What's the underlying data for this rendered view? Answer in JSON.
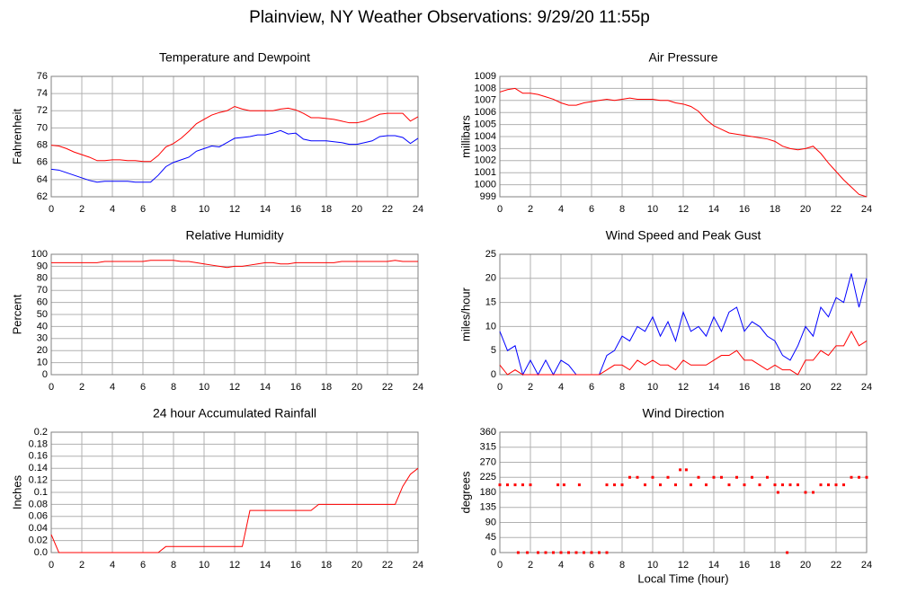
{
  "title": "Plainview, NY Weather Observations: 9/29/20 11:55p",
  "chart_data": [
    {
      "type": "line",
      "title": "Temperature and Dewpoint",
      "ylabel": "Fahrenheit",
      "x": [
        0,
        0.5,
        1,
        1.5,
        2,
        2.5,
        3,
        3.5,
        4,
        4.5,
        5,
        5.5,
        6,
        6.5,
        7,
        7.5,
        8,
        8.5,
        9,
        9.5,
        10,
        10.5,
        11,
        11.5,
        12,
        12.5,
        13,
        13.5,
        14,
        14.5,
        15,
        15.5,
        16,
        16.5,
        17,
        17.5,
        18,
        18.5,
        19,
        19.5,
        20,
        20.5,
        21,
        21.5,
        22,
        22.5,
        23,
        23.5,
        24
      ],
      "series": [
        {
          "color": "#ff0000",
          "values": [
            68,
            67.9,
            67.6,
            67.2,
            66.9,
            66.6,
            66.2,
            66.2,
            66.3,
            66.3,
            66.2,
            66.2,
            66.1,
            66.1,
            66.8,
            67.8,
            68.2,
            68.8,
            69.6,
            70.5,
            71,
            71.5,
            71.8,
            72,
            72.5,
            72.2,
            72,
            72,
            72,
            72,
            72.2,
            72.3,
            72.1,
            71.7,
            71.2,
            71.2,
            71.1,
            71,
            70.8,
            70.6,
            70.6,
            70.8,
            71.2,
            71.6,
            71.7,
            71.7,
            71.7,
            70.8,
            71.3
          ]
        },
        {
          "color": "#0000ff",
          "values": [
            65.2,
            65.1,
            64.8,
            64.5,
            64.2,
            63.9,
            63.7,
            63.8,
            63.8,
            63.8,
            63.8,
            63.7,
            63.7,
            63.7,
            64.5,
            65.5,
            66,
            66.3,
            66.6,
            67.3,
            67.6,
            67.9,
            67.8,
            68.3,
            68.8,
            68.9,
            69,
            69.2,
            69.2,
            69.4,
            69.7,
            69.3,
            69.4,
            68.7,
            68.5,
            68.5,
            68.5,
            68.4,
            68.3,
            68.1,
            68.1,
            68.3,
            68.5,
            69,
            69.1,
            69.1,
            68.9,
            68.2,
            68.8
          ]
        }
      ],
      "xlim": [
        0,
        24
      ],
      "xticks": [
        0,
        2,
        4,
        6,
        8,
        10,
        12,
        14,
        16,
        18,
        20,
        22,
        24
      ],
      "ylim": [
        62,
        76
      ],
      "yticks": [
        62,
        64,
        66,
        68,
        70,
        72,
        74,
        76
      ],
      "grid": true
    },
    {
      "type": "line",
      "title": "Air Pressure",
      "ylabel": "millibars",
      "x": [
        0,
        0.5,
        1,
        1.5,
        2,
        2.5,
        3,
        3.5,
        4,
        4.5,
        5,
        5.5,
        6,
        6.5,
        7,
        7.5,
        8,
        8.5,
        9,
        9.5,
        10,
        10.5,
        11,
        11.5,
        12,
        12.5,
        13,
        13.5,
        14,
        14.5,
        15,
        15.5,
        16,
        16.5,
        17,
        17.5,
        18,
        18.5,
        19,
        19.5,
        20,
        20.5,
        21,
        21.5,
        22,
        22.5,
        23,
        23.5,
        24
      ],
      "series": [
        {
          "color": "#ff0000",
          "values": [
            1007.7,
            1007.9,
            1008,
            1007.6,
            1007.6,
            1007.5,
            1007.3,
            1007.1,
            1006.8,
            1006.6,
            1006.6,
            1006.8,
            1006.9,
            1007,
            1007.1,
            1007,
            1007.1,
            1007.2,
            1007.1,
            1007.1,
            1007.1,
            1007,
            1007,
            1006.8,
            1006.7,
            1006.5,
            1006.1,
            1005.4,
            1004.9,
            1004.6,
            1004.3,
            1004.2,
            1004.1,
            1004,
            1003.9,
            1003.8,
            1003.6,
            1003.2,
            1003,
            1002.9,
            1003,
            1003.2,
            1002.6,
            1001.8,
            1001.1,
            1000.4,
            999.8,
            999.2,
            999
          ]
        }
      ],
      "xlim": [
        0,
        24
      ],
      "xticks": [
        0,
        2,
        4,
        6,
        8,
        10,
        12,
        14,
        16,
        18,
        20,
        22,
        24
      ],
      "ylim": [
        999,
        1009
      ],
      "yticks": [
        999,
        1000,
        1001,
        1002,
        1003,
        1004,
        1005,
        1006,
        1007,
        1008,
        1009
      ],
      "grid": true
    },
    {
      "type": "line",
      "title": "Relative Humidity",
      "ylabel": "Percent",
      "x": [
        0,
        0.5,
        1,
        1.5,
        2,
        2.5,
        3,
        3.5,
        4,
        4.5,
        5,
        5.5,
        6,
        6.5,
        7,
        7.5,
        8,
        8.5,
        9,
        9.5,
        10,
        10.5,
        11,
        11.5,
        12,
        12.5,
        13,
        13.5,
        14,
        14.5,
        15,
        15.5,
        16,
        16.5,
        17,
        17.5,
        18,
        18.5,
        19,
        19.5,
        20,
        20.5,
        21,
        21.5,
        22,
        22.5,
        23,
        23.5,
        24
      ],
      "series": [
        {
          "color": "#ff0000",
          "values": [
            93,
            93,
            93,
            93,
            93,
            93,
            93,
            94,
            94,
            94,
            94,
            94,
            94,
            95,
            95,
            95,
            95,
            94,
            94,
            93,
            92,
            91,
            90,
            89,
            90,
            90,
            91,
            92,
            93,
            93,
            92,
            92,
            93,
            93,
            93,
            93,
            93,
            93,
            94,
            94,
            94,
            94,
            94,
            94,
            94,
            95,
            94,
            94,
            94
          ]
        }
      ],
      "xlim": [
        0,
        24
      ],
      "xticks": [
        0,
        2,
        4,
        6,
        8,
        10,
        12,
        14,
        16,
        18,
        20,
        22,
        24
      ],
      "ylim": [
        0,
        100
      ],
      "yticks": [
        0,
        10,
        20,
        30,
        40,
        50,
        60,
        70,
        80,
        90,
        100
      ],
      "grid": true
    },
    {
      "type": "line",
      "title": "Wind Speed and Peak Gust",
      "ylabel": "miles/hour",
      "x": [
        0,
        0.5,
        1,
        1.5,
        2,
        2.5,
        3,
        3.5,
        4,
        4.5,
        5,
        5.5,
        6,
        6.5,
        7,
        7.5,
        8,
        8.5,
        9,
        9.5,
        10,
        10.5,
        11,
        11.5,
        12,
        12.5,
        13,
        13.5,
        14,
        14.5,
        15,
        15.5,
        16,
        16.5,
        17,
        17.5,
        18,
        18.5,
        19,
        19.5,
        20,
        20.5,
        21,
        21.5,
        22,
        22.5,
        23,
        23.5,
        24
      ],
      "series": [
        {
          "color": "#0000ff",
          "values": [
            9,
            5,
            6,
            0,
            3,
            0,
            3,
            0,
            3,
            2,
            0,
            0,
            0,
            0,
            4,
            5,
            8,
            7,
            10,
            9,
            12,
            8,
            11,
            7,
            13,
            9,
            10,
            8,
            12,
            9,
            13,
            14,
            9,
            11,
            10,
            8,
            7,
            4,
            3,
            6,
            10,
            8,
            14,
            12,
            16,
            15,
            21,
            14,
            20
          ]
        },
        {
          "color": "#ff0000",
          "values": [
            2,
            0,
            1,
            0,
            0,
            0,
            0,
            0,
            0,
            0,
            0,
            0,
            0,
            0,
            1,
            2,
            2,
            1,
            3,
            2,
            3,
            2,
            2,
            1,
            3,
            2,
            2,
            2,
            3,
            4,
            4,
            5,
            3,
            3,
            2,
            1,
            2,
            1,
            1,
            0,
            3,
            3,
            5,
            4,
            6,
            6,
            9,
            6,
            7
          ]
        }
      ],
      "xlim": [
        0,
        24
      ],
      "xticks": [
        0,
        2,
        4,
        6,
        8,
        10,
        12,
        14,
        16,
        18,
        20,
        22,
        24
      ],
      "ylim": [
        0,
        25
      ],
      "yticks": [
        0,
        5,
        10,
        15,
        20,
        25
      ],
      "grid": true
    },
    {
      "type": "line",
      "title": "24 hour Accumulated Rainfall",
      "ylabel": "Inches",
      "x": [
        0,
        0.5,
        1,
        1.5,
        2,
        2.5,
        3,
        3.5,
        4,
        4.5,
        5,
        5.5,
        6,
        6.5,
        7,
        7.5,
        8,
        8.5,
        9,
        9.5,
        10,
        10.5,
        11,
        11.5,
        12,
        12.5,
        13,
        13.5,
        14,
        14.5,
        15,
        15.5,
        16,
        16.5,
        17,
        17.5,
        18,
        18.5,
        19,
        19.5,
        20,
        20.5,
        21,
        21.5,
        22,
        22.5,
        23,
        23.5,
        24
      ],
      "series": [
        {
          "color": "#ff0000",
          "values": [
            0.03,
            0,
            0,
            0,
            0,
            0,
            0,
            0,
            0,
            0,
            0,
            0,
            0,
            0,
            0,
            0.01,
            0.01,
            0.01,
            0.01,
            0.01,
            0.01,
            0.01,
            0.01,
            0.01,
            0.01,
            0.01,
            0.07,
            0.07,
            0.07,
            0.07,
            0.07,
            0.07,
            0.07,
            0.07,
            0.07,
            0.08,
            0.08,
            0.08,
            0.08,
            0.08,
            0.08,
            0.08,
            0.08,
            0.08,
            0.08,
            0.08,
            0.11,
            0.13,
            0.14
          ]
        }
      ],
      "xlim": [
        0,
        24
      ],
      "xticks": [
        0,
        2,
        4,
        6,
        8,
        10,
        12,
        14,
        16,
        18,
        20,
        22,
        24
      ],
      "ylim": [
        0,
        0.2
      ],
      "yticks": [
        {
          "value": 0,
          "label": "0.0"
        },
        0.02,
        0.04,
        0.06,
        0.08,
        0.1,
        0.12,
        0.14,
        0.16,
        0.18,
        0.2
      ],
      "grid": true
    },
    {
      "type": "scatter",
      "title": "Wind Direction",
      "ylabel": "degrees",
      "xlabel": "Local Time (hour)",
      "x": [
        0,
        0.5,
        1,
        1.5,
        2,
        1.2,
        1.8,
        2.5,
        3,
        3.5,
        4,
        4.5,
        5,
        5.5,
        6,
        6.5,
        7,
        3.8,
        4.2,
        5.2,
        7,
        7.5,
        8,
        8.5,
        9,
        9.5,
        10,
        10.5,
        11,
        11.5,
        11.8,
        12.2,
        12.5,
        13,
        13.5,
        14,
        14.5,
        15,
        15.5,
        16,
        16.5,
        17,
        17.5,
        18,
        18.2,
        18.5,
        18.8,
        19,
        19.5,
        20,
        20.5,
        21,
        21.5,
        22,
        22.5,
        23,
        23.5,
        24
      ],
      "series": [
        {
          "color": "#ff0000",
          "values": [
            202.5,
            202.5,
            202.5,
            202.5,
            202.5,
            0,
            0,
            0,
            0,
            0,
            0,
            0,
            0,
            0,
            0,
            0,
            0,
            202.5,
            202.5,
            202.5,
            202.5,
            202.5,
            202.5,
            225,
            225,
            202.5,
            225,
            202.5,
            225,
            202.5,
            247.5,
            247.5,
            202.5,
            225,
            202.5,
            225,
            225,
            202.5,
            225,
            202.5,
            225,
            202.5,
            225,
            202.5,
            180,
            202.5,
            0,
            202.5,
            202.5,
            180,
            180,
            202.5,
            202.5,
            202.5,
            202.5,
            225,
            225,
            225
          ]
        }
      ],
      "xlim": [
        0,
        24
      ],
      "xticks": [
        0,
        2,
        4,
        6,
        8,
        10,
        12,
        14,
        16,
        18,
        20,
        22,
        24
      ],
      "ylim": [
        0,
        360
      ],
      "yticks": [
        0,
        45,
        90,
        135,
        180,
        225,
        270,
        315,
        360
      ],
      "grid": true
    }
  ]
}
